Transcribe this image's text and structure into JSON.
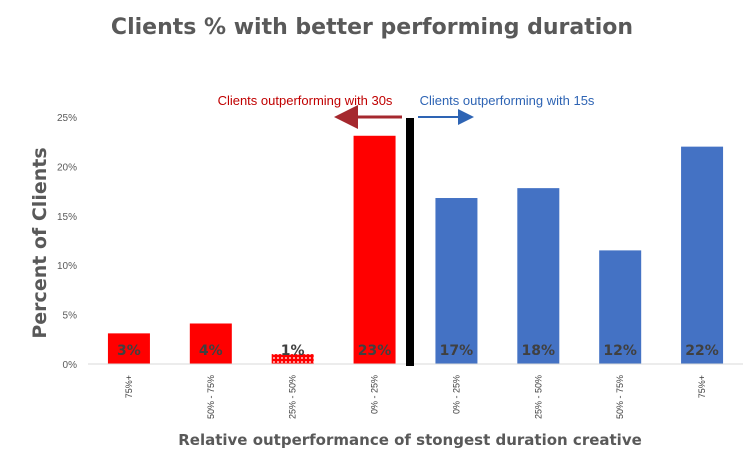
{
  "chart_data": {
    "type": "bar",
    "title": "Clients % with better performing duration",
    "xlabel": "Relative outperformance of stongest duration creative",
    "ylabel": "Percent of Clients",
    "ylim": [
      0,
      25
    ],
    "yticks": [
      "0%",
      "5%",
      "10%",
      "15%",
      "20%",
      "25%"
    ],
    "grid": false,
    "categories": [
      "75%+",
      "50% - 75%",
      "25% - 50%",
      "0% - 25%",
      "0% - 25%",
      "25% - 50%",
      "50% - 75%",
      "75%+"
    ],
    "values": [
      3.1,
      4.1,
      1.0,
      23.1,
      16.8,
      17.8,
      11.5,
      22.0
    ],
    "data_labels": [
      "3%",
      "4%",
      "1%",
      "23%",
      "17%",
      "18%",
      "12%",
      "22%"
    ],
    "bar_colors": [
      "#ff0000",
      "#ff0000",
      "#ff0000",
      "#ff0000",
      "#4472c4",
      "#4472c4",
      "#4472c4",
      "#4472c4"
    ],
    "bar_patterns": [
      "solid",
      "solid",
      "dotted",
      "solid",
      "solid",
      "solid",
      "solid",
      "solid"
    ],
    "annotations": {
      "left": {
        "text": "Clients outperforming with 30s",
        "color": "#c00000",
        "arrow_color": "#a5282e"
      },
      "right": {
        "text": "Clients outperforming with 15s",
        "color": "#2e64b4",
        "arrow_color": "#2e64b4"
      },
      "divider_color": "#000000"
    }
  }
}
